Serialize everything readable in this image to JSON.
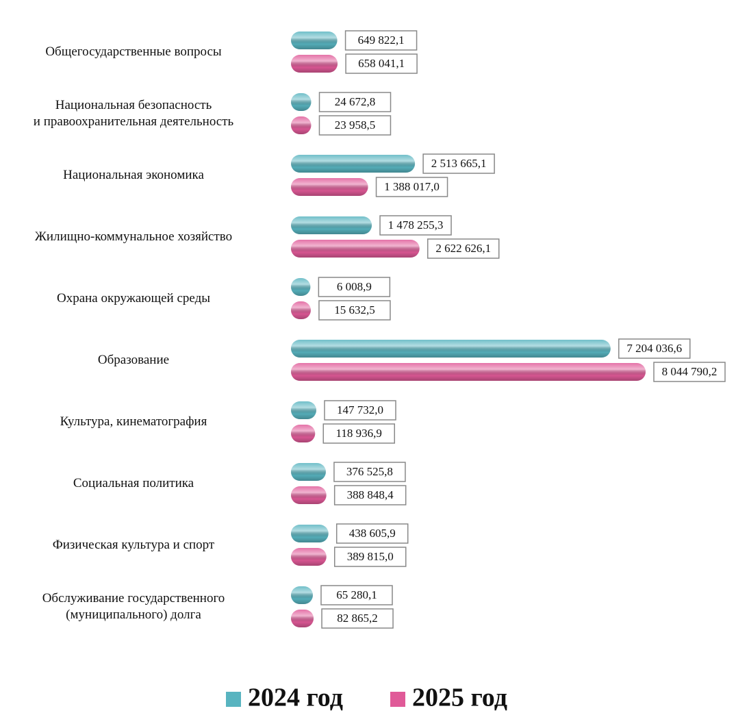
{
  "chart_data": {
    "type": "bar",
    "orientation": "horizontal",
    "categories": [
      "Общегосударственные вопросы",
      "Национальная безопасность\nи правоохранительная деятельность",
      "Национальная экономика",
      "Жилищно-коммунальное хозяйство",
      "Охрана окружающей среды",
      "Образование",
      "Культура, кинематография",
      "Социальная политика",
      "Физическая культура и спорт",
      "Обслуживание государственного\n(муниципального) долга"
    ],
    "series": [
      {
        "name": "2024 год",
        "color": "#58b4c0",
        "values": [
          649822.1,
          24672.8,
          2513665.1,
          1478255.3,
          6008.9,
          7204036.6,
          147732.0,
          376525.8,
          438605.9,
          65280.1
        ],
        "value_labels": [
          "649 822,1",
          "24 672,8",
          "2 513 665,1",
          "1 478 255,3",
          "6 008,9",
          "7 204 036,6",
          "147 732,0",
          "376 525,8",
          "438 605,9",
          "65 280,1"
        ]
      },
      {
        "name": "2025 год",
        "color": "#e05a98",
        "values": [
          658041.1,
          23958.5,
          1388017.0,
          2622626.1,
          15632.5,
          8044790.2,
          118936.9,
          388848.4,
          389815.0,
          82865.2
        ],
        "value_labels": [
          "658 041,1",
          "23 958,5",
          "1 388 017,0",
          "2 622 626,1",
          "15 632,5",
          "8 044 790,2",
          "118 936,9",
          "388 848,4",
          "389 815,0",
          "82 865,2"
        ]
      }
    ],
    "legend": "bottom"
  }
}
